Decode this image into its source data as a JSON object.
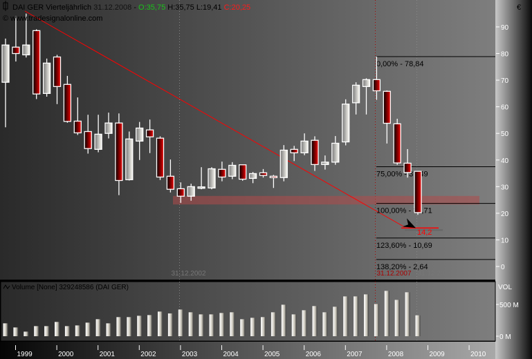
{
  "header": {
    "symbol": "DAI GER",
    "period": "Vierteljährlich",
    "date": "31.12.2008",
    "separator": "-",
    "open": "O:35,75",
    "high": "H:35,75",
    "low": "L:19,41",
    "close": "C:20,25",
    "watermark": "© www.tradesignalonline.com",
    "currency": "€"
  },
  "colors": {
    "open": "#19c219",
    "close": "#ff1a1a",
    "up": "#f0ede6",
    "down": "#cc0000",
    "trendline": "#ff0000",
    "support_band": "#a05050"
  },
  "chart_data": [
    {
      "type": "candlestick",
      "title": "DAI GER Vierteljährlich",
      "ylim": [
        -5,
        100
      ],
      "y_ticks": [
        "0",
        "10",
        "20",
        "30",
        "40",
        "50",
        "60",
        "70",
        "80",
        "90"
      ],
      "ohlc": [
        [
          69.2,
          85.6,
          52.3,
          83.2
        ],
        [
          82.4,
          94,
          77,
          80.0
        ],
        [
          79.5,
          95,
          78.5,
          83.2
        ],
        [
          88.6,
          89.1,
          62.9,
          64.8
        ],
        [
          65,
          78.1,
          63.8,
          76.4
        ],
        [
          78.7,
          79.5,
          61,
          67.6
        ],
        [
          68.4,
          71.6,
          54,
          54.5
        ],
        [
          54.6,
          63.5,
          49.4,
          50.2
        ],
        [
          50.7,
          57,
          42.4,
          44.3
        ],
        [
          44,
          57,
          42.9,
          49.7
        ],
        [
          50,
          57.8,
          48.1,
          53.9
        ],
        [
          53.9,
          57.5,
          26.8,
          32.3
        ],
        [
          32.6,
          50.7,
          32.3,
          47.9
        ],
        [
          47.1,
          54.3,
          40,
          52
        ],
        [
          51.3,
          55.2,
          42.6,
          48.7
        ],
        [
          48.2,
          48.9,
          32.5,
          33.6
        ],
        [
          33.9,
          40.2,
          27.8,
          29.0
        ],
        [
          29.2,
          31.6,
          23.9,
          26.4
        ],
        [
          26.4,
          31.1,
          24.7,
          30.0
        ],
        [
          29.6,
          37.3,
          29.0,
          29.9
        ],
        [
          29.5,
          37.3,
          29.0,
          36.7
        ],
        [
          36.5,
          39.4,
          32,
          33.6
        ],
        [
          33.9,
          39.2,
          32.8,
          38
        ],
        [
          38.2,
          38.2,
          32.2,
          32.8
        ],
        [
          33.1,
          35.5,
          31.3,
          34.9
        ],
        [
          35.2,
          36.6,
          33.4,
          34.2
        ],
        [
          33.9,
          34.4,
          29.5,
          33.4
        ],
        [
          33.4,
          45.6,
          32,
          43.7
        ],
        [
          44,
          45.3,
          39.6,
          42.7
        ],
        [
          42.7,
          50,
          41.8,
          47.1
        ],
        [
          47.4,
          48.9,
          35.9,
          38.3
        ],
        [
          38.3,
          41.7,
          36.4,
          39.2
        ],
        [
          39.2,
          49,
          38.2,
          46.3
        ],
        [
          46.8,
          62.8,
          45.5,
          61
        ],
        [
          61.5,
          69.2,
          57.1,
          68.1
        ],
        [
          67.6,
          70.7,
          57.1,
          70.2
        ],
        [
          70.2,
          78.84,
          62.6,
          66
        ],
        [
          65.8,
          66.1,
          46.2,
          53.8
        ],
        [
          53.6,
          55.5,
          38.2,
          38.9
        ],
        [
          38.8,
          44.1,
          33.4,
          35.3
        ],
        [
          35.75,
          35.75,
          19.41,
          20.25
        ]
      ],
      "fibonacci": [
        {
          "label": "0,00% - 78,84",
          "value": 78.84
        },
        {
          "label": "75,00% - 37,49",
          "value": 37.49
        },
        {
          "label": "100,00% - 23,71",
          "value": 23.71
        },
        {
          "label": "123,60% - 10,69",
          "value": 10.69
        },
        {
          "label": "138,20% - 2,64",
          "value": 2.64
        }
      ],
      "support_band": [
        23.3,
        26.5
      ],
      "target": {
        "label": "14,2",
        "value": 14.2
      },
      "markers": [
        {
          "label": "31.12.2002",
          "color": "#777777"
        },
        {
          "label": "31.12.2007",
          "color": "#aa0000"
        },
        {
          "label": "31.12.2008",
          "color": "#777777"
        }
      ]
    },
    {
      "type": "bar",
      "title": "Volume [None] 329248586 (DAI GER)",
      "ylabel": "VOL",
      "y_ticks": [
        "0 M",
        "500 M"
      ],
      "values_millions": [
        203,
        138,
        72,
        159,
        159,
        225,
        159,
        170,
        214,
        268,
        203,
        301,
        301,
        322,
        333,
        388,
        359,
        420,
        377,
        344,
        344,
        366,
        377,
        268,
        290,
        301,
        377,
        496,
        344,
        409,
        475,
        377,
        464,
        627,
        627,
        659,
        507,
        714,
        572,
        692,
        329
      ]
    }
  ],
  "time_axis": [
    "1999",
    "2000",
    "2001",
    "2002",
    "2003",
    "2004",
    "2005",
    "2006",
    "2007",
    "2008",
    "2009",
    "2010"
  ]
}
